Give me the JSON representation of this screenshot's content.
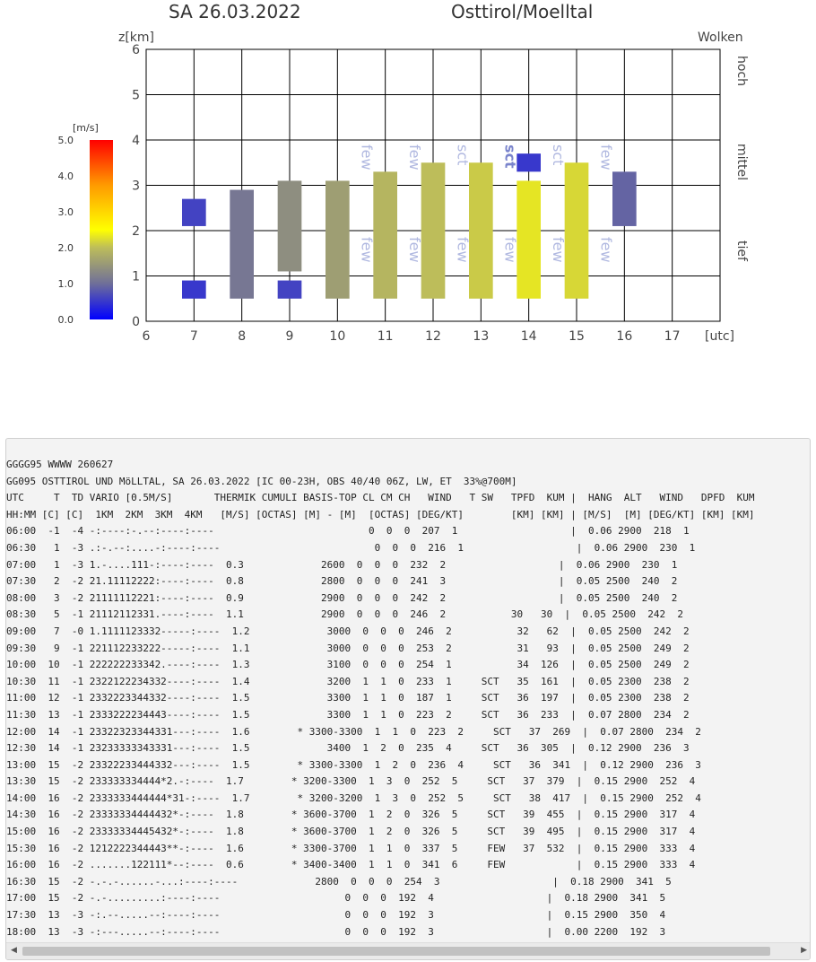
{
  "header": {
    "date": "SA 26.03.2022",
    "region": "Osttirol/Moelltal"
  },
  "chart_data": {
    "type": "heatmap",
    "y_axis_label": "z[km]",
    "x_axis_unit": "[utc]",
    "clouds_label": "Wolken",
    "cloud_levels": [
      "hoch",
      "mittel",
      "tief"
    ],
    "x_ticks": [
      6,
      7,
      8,
      9,
      10,
      11,
      12,
      13,
      14,
      15,
      16,
      17
    ],
    "y_ticks": [
      0,
      1,
      2,
      3,
      4,
      5,
      6
    ],
    "xlim": [
      6,
      18
    ],
    "ylim": [
      0,
      6
    ],
    "colorbar": {
      "unit": "[m/s]",
      "ticks": [
        "5.0",
        "4.0",
        "3.0",
        "2.0",
        "1.0",
        "0.0"
      ],
      "range": [
        0,
        5
      ]
    },
    "columns": [
      {
        "hour": 7,
        "segments": [
          [
            0.5,
            0.9,
            0.5
          ],
          [
            2.1,
            2.7,
            0.6
          ]
        ]
      },
      {
        "hour": 8,
        "segments": [
          [
            0.5,
            2.9,
            1.1
          ]
        ]
      },
      {
        "hour": 9,
        "segments": [
          [
            0.5,
            0.9,
            0.6
          ],
          [
            1.1,
            3.1,
            1.4
          ]
        ]
      },
      {
        "hour": 10,
        "segments": [
          [
            0.5,
            3.1,
            1.6
          ]
        ]
      },
      {
        "hour": 11,
        "segments": [
          [
            0.5,
            3.3,
            1.9
          ]
        ]
      },
      {
        "hour": 12,
        "segments": [
          [
            0.5,
            3.5,
            2.0
          ]
        ]
      },
      {
        "hour": 13,
        "segments": [
          [
            0.5,
            3.5,
            2.1
          ]
        ]
      },
      {
        "hour": 14,
        "segments": [
          [
            0.5,
            3.1,
            2.3
          ],
          [
            3.3,
            3.7,
            0.5
          ]
        ]
      },
      {
        "hour": 15,
        "segments": [
          [
            0.5,
            3.5,
            2.2
          ]
        ]
      },
      {
        "hour": 16,
        "segments": [
          [
            2.1,
            3.3,
            0.9
          ]
        ]
      }
    ],
    "cloud_labels": [
      {
        "hour": 10,
        "level": "mittel",
        "text": "few"
      },
      {
        "hour": 11,
        "level": "mittel",
        "text": "few"
      },
      {
        "hour": 12,
        "level": "mittel",
        "text": "sct"
      },
      {
        "hour": 13,
        "level": "mittel",
        "text": "sct",
        "bold": true
      },
      {
        "hour": 14,
        "level": "mittel",
        "text": "sct"
      },
      {
        "hour": 15,
        "level": "mittel",
        "text": "few"
      },
      {
        "hour": 10,
        "level": "tief",
        "text": "few"
      },
      {
        "hour": 11,
        "level": "tief",
        "text": "few"
      },
      {
        "hour": 12,
        "level": "tief",
        "text": "few"
      },
      {
        "hour": 13,
        "level": "tief",
        "text": "few"
      },
      {
        "hour": 14,
        "level": "tief",
        "text": "few"
      },
      {
        "hour": 15,
        "level": "tief",
        "text": "few"
      }
    ]
  },
  "report": {
    "lines": [
      "GGGG95 WWWW 260627",
      "GG095 OSTTIROL UND MöLLTAL, SA 26.03.2022 [IC 00-23H, OBS 40/40 06Z, LW, ET  33%@700M]",
      "UTC     T  TD VARIO [0.5M/S]       THERMIK CUMULI BASIS-TOP CL CM CH   WIND   T SW   TPFD  KUM |  HANG  ALT   WIND   DPFD  KUM",
      "HH:MM [C] [C]  1KM  2KM  3KM  4KM   [M/S] [OCTAS] [M] - [M]  [OCTAS] [DEG/KT]        [KM] [KM] | [M/S]  [M] [DEG/KT] [KM] [KM]",
      "06:00  -1  -4 -:----:-.--:----:----                          0  0  0  207  1                   |  0.06 2900  218  1",
      "06:30   1  -3 .:-.--:....-:----:----                          0  0  0  216  1                   |  0.06 2900  230  1",
      "07:00   1  -3 1.-....111-:----:----  0.3             2600  0  0  0  232  2                   |  0.06 2900  230  1",
      "07:30   2  -2 21.11112222:----:----  0.8             2800  0  0  0  241  3                   |  0.05 2500  240  2",
      "08:00   3  -2 21111112221:----:----  0.9             2900  0  0  0  242  2                   |  0.05 2500  240  2",
      "08:30   5  -1 21112112331.----:----  1.1             2900  0  0  0  246  2           30   30  |  0.05 2500  242  2",
      "09:00   7  -0 1.1111123332-----:----  1.2             3000  0  0  0  246  2           32   62  |  0.05 2500  242  2",
      "09:30   9  -1 221112233222-----:----  1.1             3000  0  0  0  253  2           31   93  |  0.05 2500  249  2",
      "10:00  10  -1 222222233342.----:----  1.3             3100  0  0  0  254  1           34  126  |  0.05 2500  249  2",
      "10:30  11  -1 2322122234332----:----  1.4             3200  1  1  0  233  1     SCT   35  161  |  0.05 2300  238  2",
      "11:00  12  -1 2332223344332----:----  1.5             3300  1  1  0  187  1     SCT   36  197  |  0.05 2300  238  2",
      "11:30  13  -1 2333222234443----:----  1.5             3300  1  1  0  223  2     SCT   36  233  |  0.07 2800  234  2",
      "12:00  14  -1 23322323344331---:----  1.6        * 3300-3300  1  1  0  223  2     SCT   37  269  |  0.07 2800  234  2",
      "12:30  14  -1 23233333343331---:----  1.5             3400  1  2  0  235  4     SCT   36  305  |  0.12 2900  236  3",
      "13:00  15  -2 23322233444332---:----  1.5        * 3300-3300  1  2  0  236  4     SCT   36  341  |  0.12 2900  236  3",
      "13:30  15  -2 233333334444*2.-:----  1.7        * 3200-3300  1  3  0  252  5     SCT   37  379  |  0.15 2900  252  4",
      "14:00  16  -2 2333333444444*31-:----  1.7        * 3200-3200  1  3  0  252  5     SCT   38  417  |  0.15 2900  252  4",
      "14:30  16  -2 23333334444432*-:----  1.8        * 3600-3700  1  2  0  326  5     SCT   39  455  |  0.15 2900  317  4",
      "15:00  16  -2 23333334445432*-:----  1.8        * 3600-3700  1  2  0  326  5     SCT   39  495  |  0.15 2900  317  4",
      "15:30  16  -2 1212222344443**-:----  1.6        * 3300-3700  1  1  0  337  5     FEW   37  532  |  0.15 2900  333  4",
      "16:00  16  -2 .......122111*--:----  0.6        * 3400-3400  1  1  0  341  6     FEW            |  0.15 2900  333  4",
      "16:30  15  -2 -.-.-......-...:----:----             2800  0  0  0  254  3                   |  0.18 2900  341  5",
      "17:00  15  -2 -.-.........:----:----                     0  0  0  192  4                   |  0.18 2900  341  5",
      "17:30  13  -3 -:.--.....--:----:----                     0  0  0  192  3                   |  0.15 2900  350  4",
      "18:00  13  -3 -:---.....--:----:----                     0  0  0  192  3                   |  0.00 2200  192  3"
    ]
  }
}
